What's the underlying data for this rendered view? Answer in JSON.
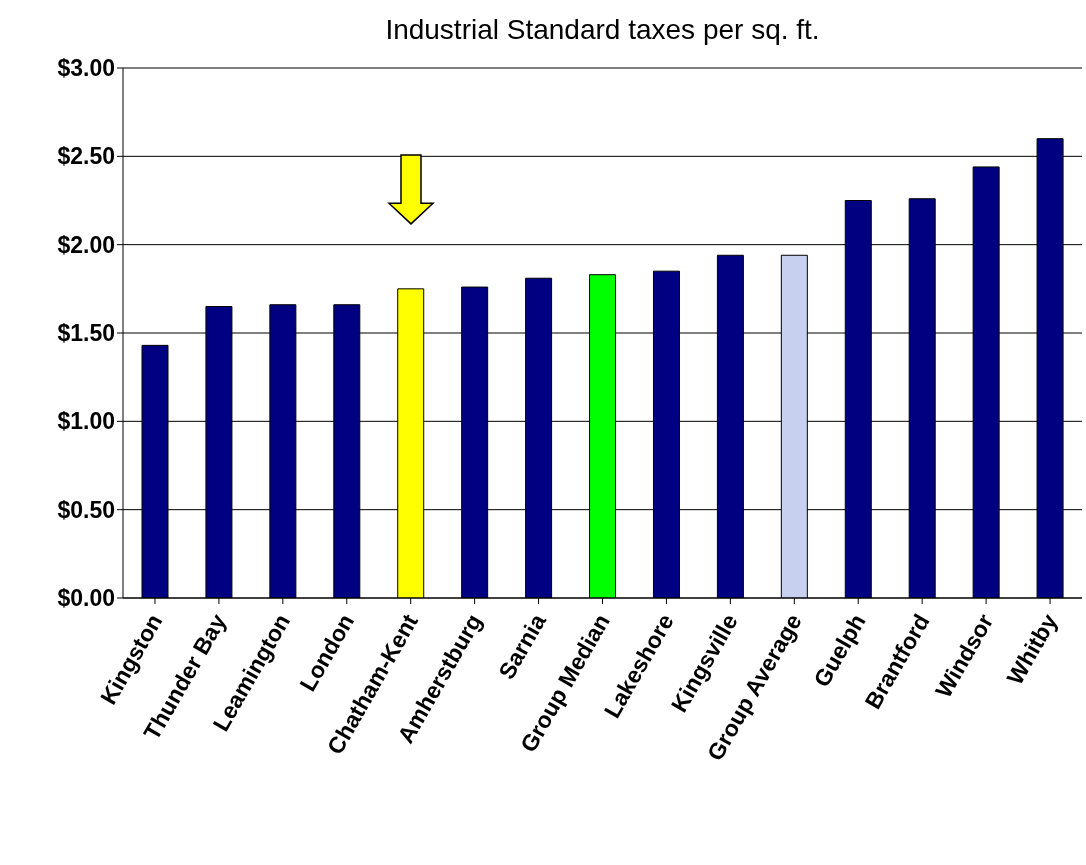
{
  "chart_data": {
    "type": "bar",
    "title": "Industrial Standard taxes per sq. ft.",
    "categories": [
      "Kingston",
      "Thunder Bay",
      "Leamington",
      "London",
      "Chatham-Kent",
      "Amherstburg",
      "Sarnia",
      "Group Median",
      "Lakeshore",
      "Kingsville",
      "Group Average",
      "Guelph",
      "Brantford",
      "Windsor",
      "Whitby"
    ],
    "values": [
      1.43,
      1.65,
      1.66,
      1.66,
      1.75,
      1.76,
      1.81,
      1.83,
      1.85,
      1.94,
      1.94,
      2.25,
      2.26,
      2.44,
      2.6
    ],
    "colors": [
      "#000080",
      "#000080",
      "#000080",
      "#000080",
      "#ffff00",
      "#000080",
      "#000080",
      "#00ff00",
      "#000080",
      "#000080",
      "#c8d0f0",
      "#000080",
      "#000080",
      "#000080",
      "#000080"
    ],
    "ylim": [
      0,
      3
    ],
    "yticks": [
      {
        "value": 0,
        "label": "$0.00"
      },
      {
        "value": 0.5,
        "label": "$0.50"
      },
      {
        "value": 1,
        "label": "$1.00"
      },
      {
        "value": 1.5,
        "label": "$1.50"
      },
      {
        "value": 2,
        "label": "$2.00"
      },
      {
        "value": 2.5,
        "label": "$2.50"
      },
      {
        "value": 3,
        "label": "$3.00"
      }
    ],
    "grid": "y",
    "legend": false
  }
}
